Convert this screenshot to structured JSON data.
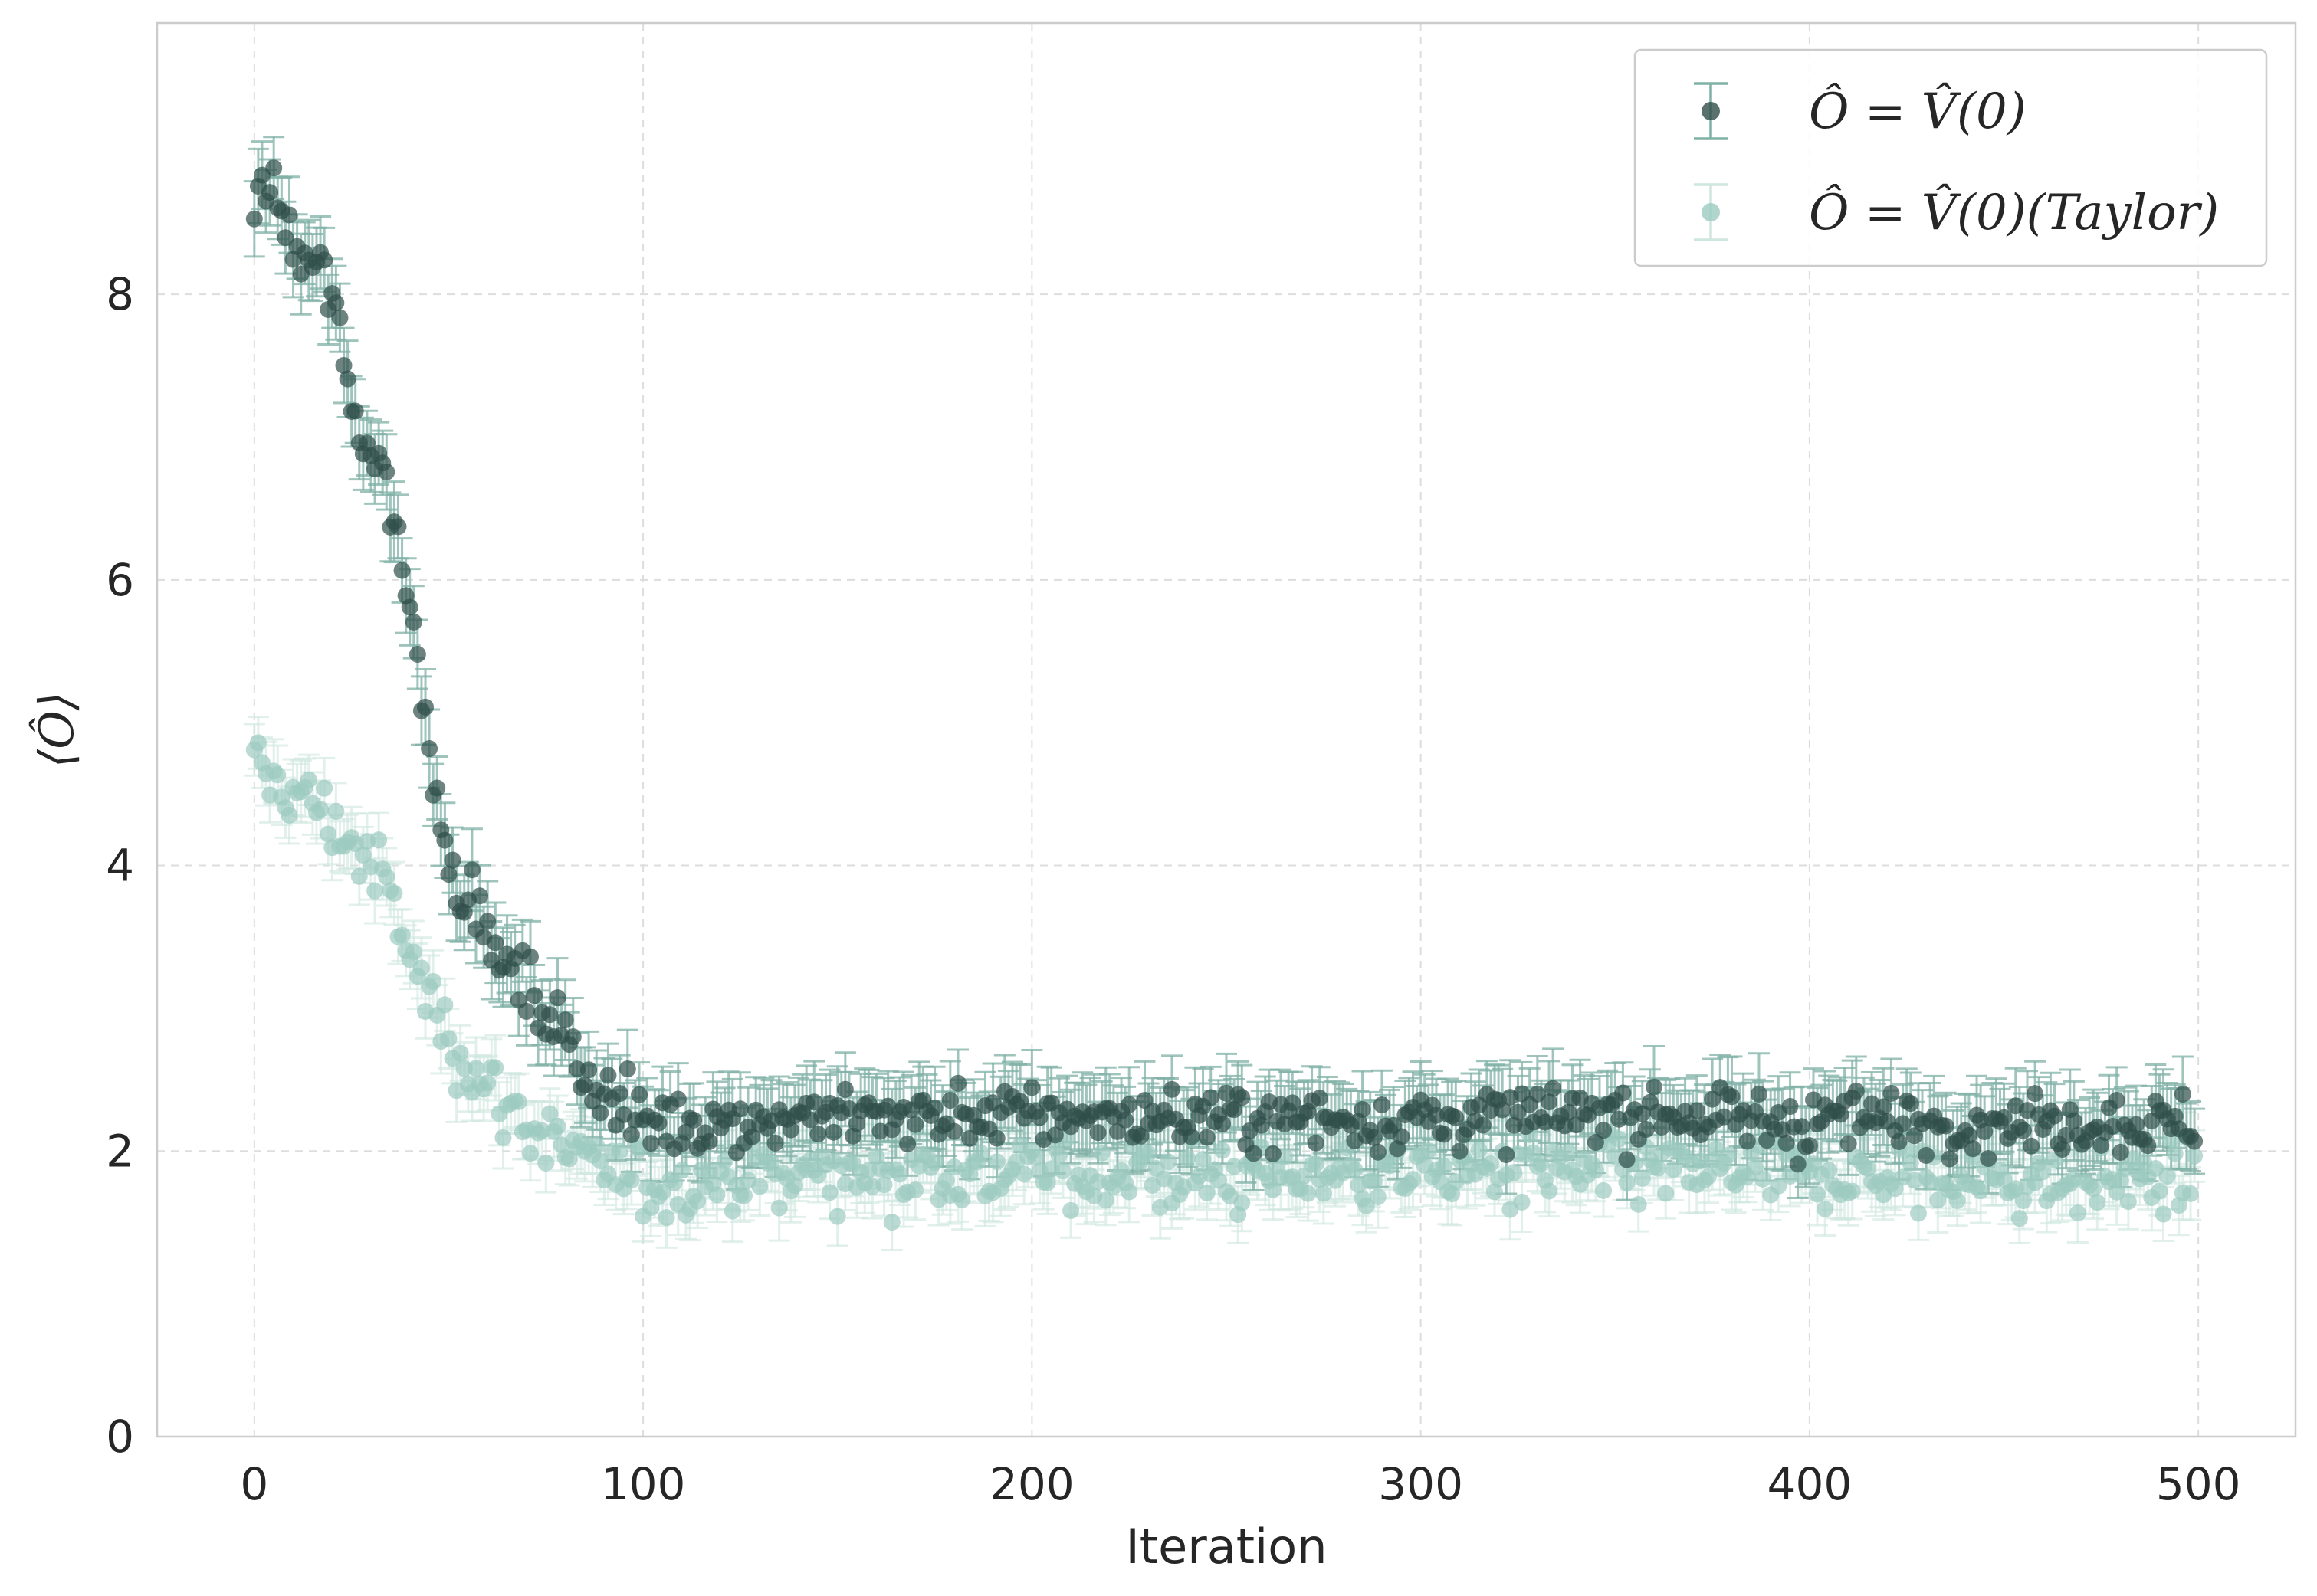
{
  "chart_data": {
    "type": "scatter",
    "title": "",
    "xlabel": "Iteration",
    "ylabel": "⟨Ô⟩",
    "xlim": [
      -25,
      525
    ],
    "ylim": [
      0,
      9.9
    ],
    "x_ticks": [
      0,
      100,
      200,
      300,
      400,
      500
    ],
    "y_ticks": [
      0,
      2,
      4,
      6,
      8
    ],
    "grid": true,
    "legend_position": "top-right",
    "n_points_per_series": 500,
    "series": [
      {
        "name": "Ô = V̂(0)",
        "color": "#2f4f4a",
        "errorbar_color": "#7fb0a6",
        "profile_x": [
          0,
          5,
          10,
          15,
          20,
          25,
          30,
          35,
          40,
          45,
          50,
          55,
          60,
          70,
          80,
          90,
          100,
          110,
          150,
          200,
          250,
          300,
          350,
          400,
          450,
          500
        ],
        "profile_y": [
          8.7,
          8.7,
          8.3,
          8.2,
          8.0,
          7.2,
          6.9,
          6.6,
          5.8,
          4.9,
          4.0,
          3.8,
          3.5,
          3.1,
          2.8,
          2.4,
          2.2,
          2.2,
          2.25,
          2.25,
          2.22,
          2.22,
          2.25,
          2.22,
          2.2,
          2.2
        ],
        "noise": 0.15,
        "error": 0.25
      },
      {
        "name": "Ô = V̂(0)(Taylor)",
        "color": "#9ccbc1",
        "errorbar_color": "#cfe6e0",
        "profile_x": [
          0,
          5,
          10,
          15,
          20,
          25,
          30,
          35,
          40,
          50,
          60,
          70,
          80,
          90,
          100,
          110,
          150,
          200,
          250,
          300,
          350,
          400,
          450,
          500
        ],
        "profile_y": [
          4.65,
          4.6,
          4.5,
          4.45,
          4.3,
          4.15,
          4.0,
          3.8,
          3.35,
          2.8,
          2.45,
          2.2,
          2.0,
          1.85,
          1.75,
          1.78,
          1.85,
          1.85,
          1.82,
          1.85,
          1.85,
          1.82,
          1.78,
          1.8
        ],
        "noise": 0.17,
        "error": 0.2
      }
    ]
  }
}
